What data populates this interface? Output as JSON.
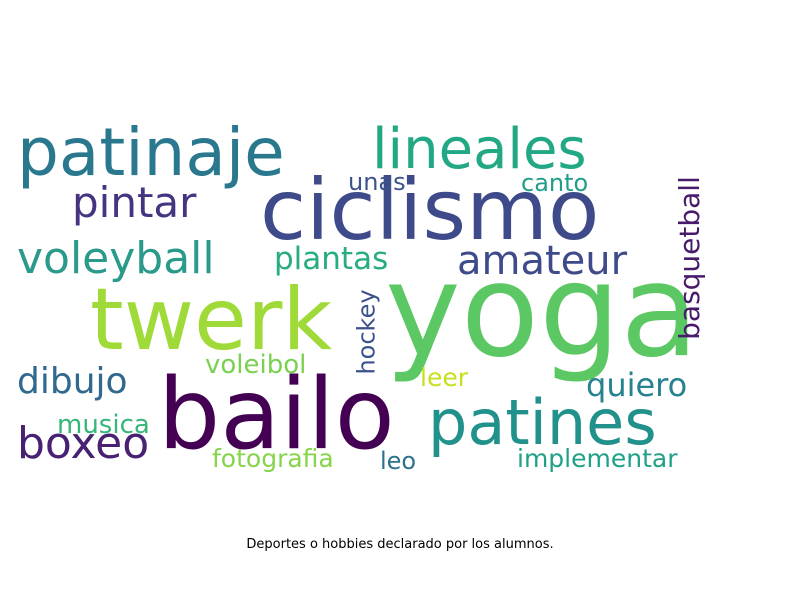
{
  "wordcloud": {
    "words": [
      {
        "text": "yoga",
        "color": "#5cc863"
      },
      {
        "text": "ciclismo",
        "color": "#3e4a89"
      },
      {
        "text": "bailo",
        "color": "#440154"
      },
      {
        "text": "twerk",
        "color": "#a0da39"
      },
      {
        "text": "patinaje",
        "color": "#2a788e"
      },
      {
        "text": "lineales",
        "color": "#22a884"
      },
      {
        "text": "patines",
        "color": "#21918c"
      },
      {
        "text": "voleyball",
        "color": "#2a9a8a"
      },
      {
        "text": "amateur",
        "color": "#3e4a89"
      },
      {
        "text": "pintar",
        "color": "#463480"
      },
      {
        "text": "boxeo",
        "color": "#482173"
      },
      {
        "text": "dibujo",
        "color": "#31688e"
      },
      {
        "text": "quiero",
        "color": "#26828e"
      },
      {
        "text": "plantas",
        "color": "#27ad81"
      },
      {
        "text": "basquetball",
        "color": "#481a6c"
      },
      {
        "text": "hockey",
        "color": "#3b528b"
      },
      {
        "text": "voleibol",
        "color": "#7ad151"
      },
      {
        "text": "musica",
        "color": "#35b779"
      },
      {
        "text": "fotografia",
        "color": "#86d549"
      },
      {
        "text": "implementar",
        "color": "#1fa187"
      },
      {
        "text": "leer",
        "color": "#c8e020"
      },
      {
        "text": "leo",
        "color": "#2c728e"
      },
      {
        "text": "unas",
        "color": "#3b528b"
      },
      {
        "text": "canto",
        "color": "#1f9e89"
      }
    ]
  },
  "caption": "Deportes o hobbies declarado por los alumnos."
}
